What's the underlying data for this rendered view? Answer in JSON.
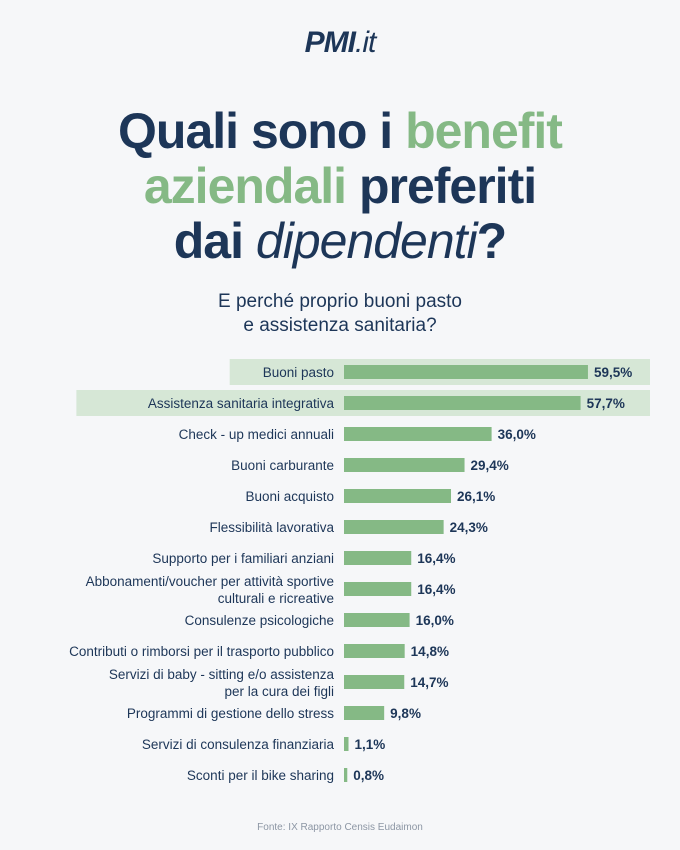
{
  "logo": {
    "brand": "PMI",
    "suffix": ".it"
  },
  "headline": {
    "line1_a": "Quali sono i ",
    "line1_b": "benefit",
    "line2_a": "aziendali",
    "line2_b": " preferiti",
    "line3_a": "dai ",
    "line3_b": "dipendenti",
    "line3_c": "?"
  },
  "subtitle": {
    "line1": "E perché proprio buoni pasto",
    "line2": "e assistenza sanitaria?"
  },
  "source": "Fonte: IX Rapporto Censis Eudaimon",
  "colors": {
    "bar": "#85b985",
    "highlight": "#d6e7d6",
    "text": "#1d3658",
    "accent": "#85b985"
  },
  "chart_data": {
    "type": "bar",
    "orientation": "horizontal",
    "highlighted": [
      0,
      1
    ],
    "categories": [
      [
        "Buoni pasto"
      ],
      [
        "Assistenza sanitaria integrativa"
      ],
      [
        "Check - up medici annuali"
      ],
      [
        "Buoni carburante"
      ],
      [
        "Buoni acquisto"
      ],
      [
        "Flessibilità lavorativa"
      ],
      [
        "Supporto per i familiari anziani"
      ],
      [
        "Abbonamenti/voucher per attività sportive",
        "culturali e ricreative"
      ],
      [
        "Consulenze psicologiche"
      ],
      [
        "Contributi o rimborsi per il trasporto pubblico"
      ],
      [
        "Servizi di baby - sitting e/o assistenza",
        "per la cura dei figli"
      ],
      [
        "Programmi di gestione dello stress"
      ],
      [
        "Servizi di consulenza finanziaria"
      ],
      [
        "Sconti per il bike sharing"
      ]
    ],
    "values": [
      59.5,
      57.7,
      36.0,
      29.4,
      26.1,
      24.3,
      16.4,
      16.4,
      16.0,
      14.8,
      14.7,
      9.8,
      1.1,
      0.8
    ],
    "value_labels": [
      "59,5%",
      "57,7%",
      "36,0%",
      "29,4%",
      "26,1%",
      "24,3%",
      "16,4%",
      "16,4%",
      "16,0%",
      "14,8%",
      "14,7%",
      "9,8%",
      "1,1%",
      "0,8%"
    ],
    "xlim": [
      0,
      60
    ],
    "grid": false
  }
}
